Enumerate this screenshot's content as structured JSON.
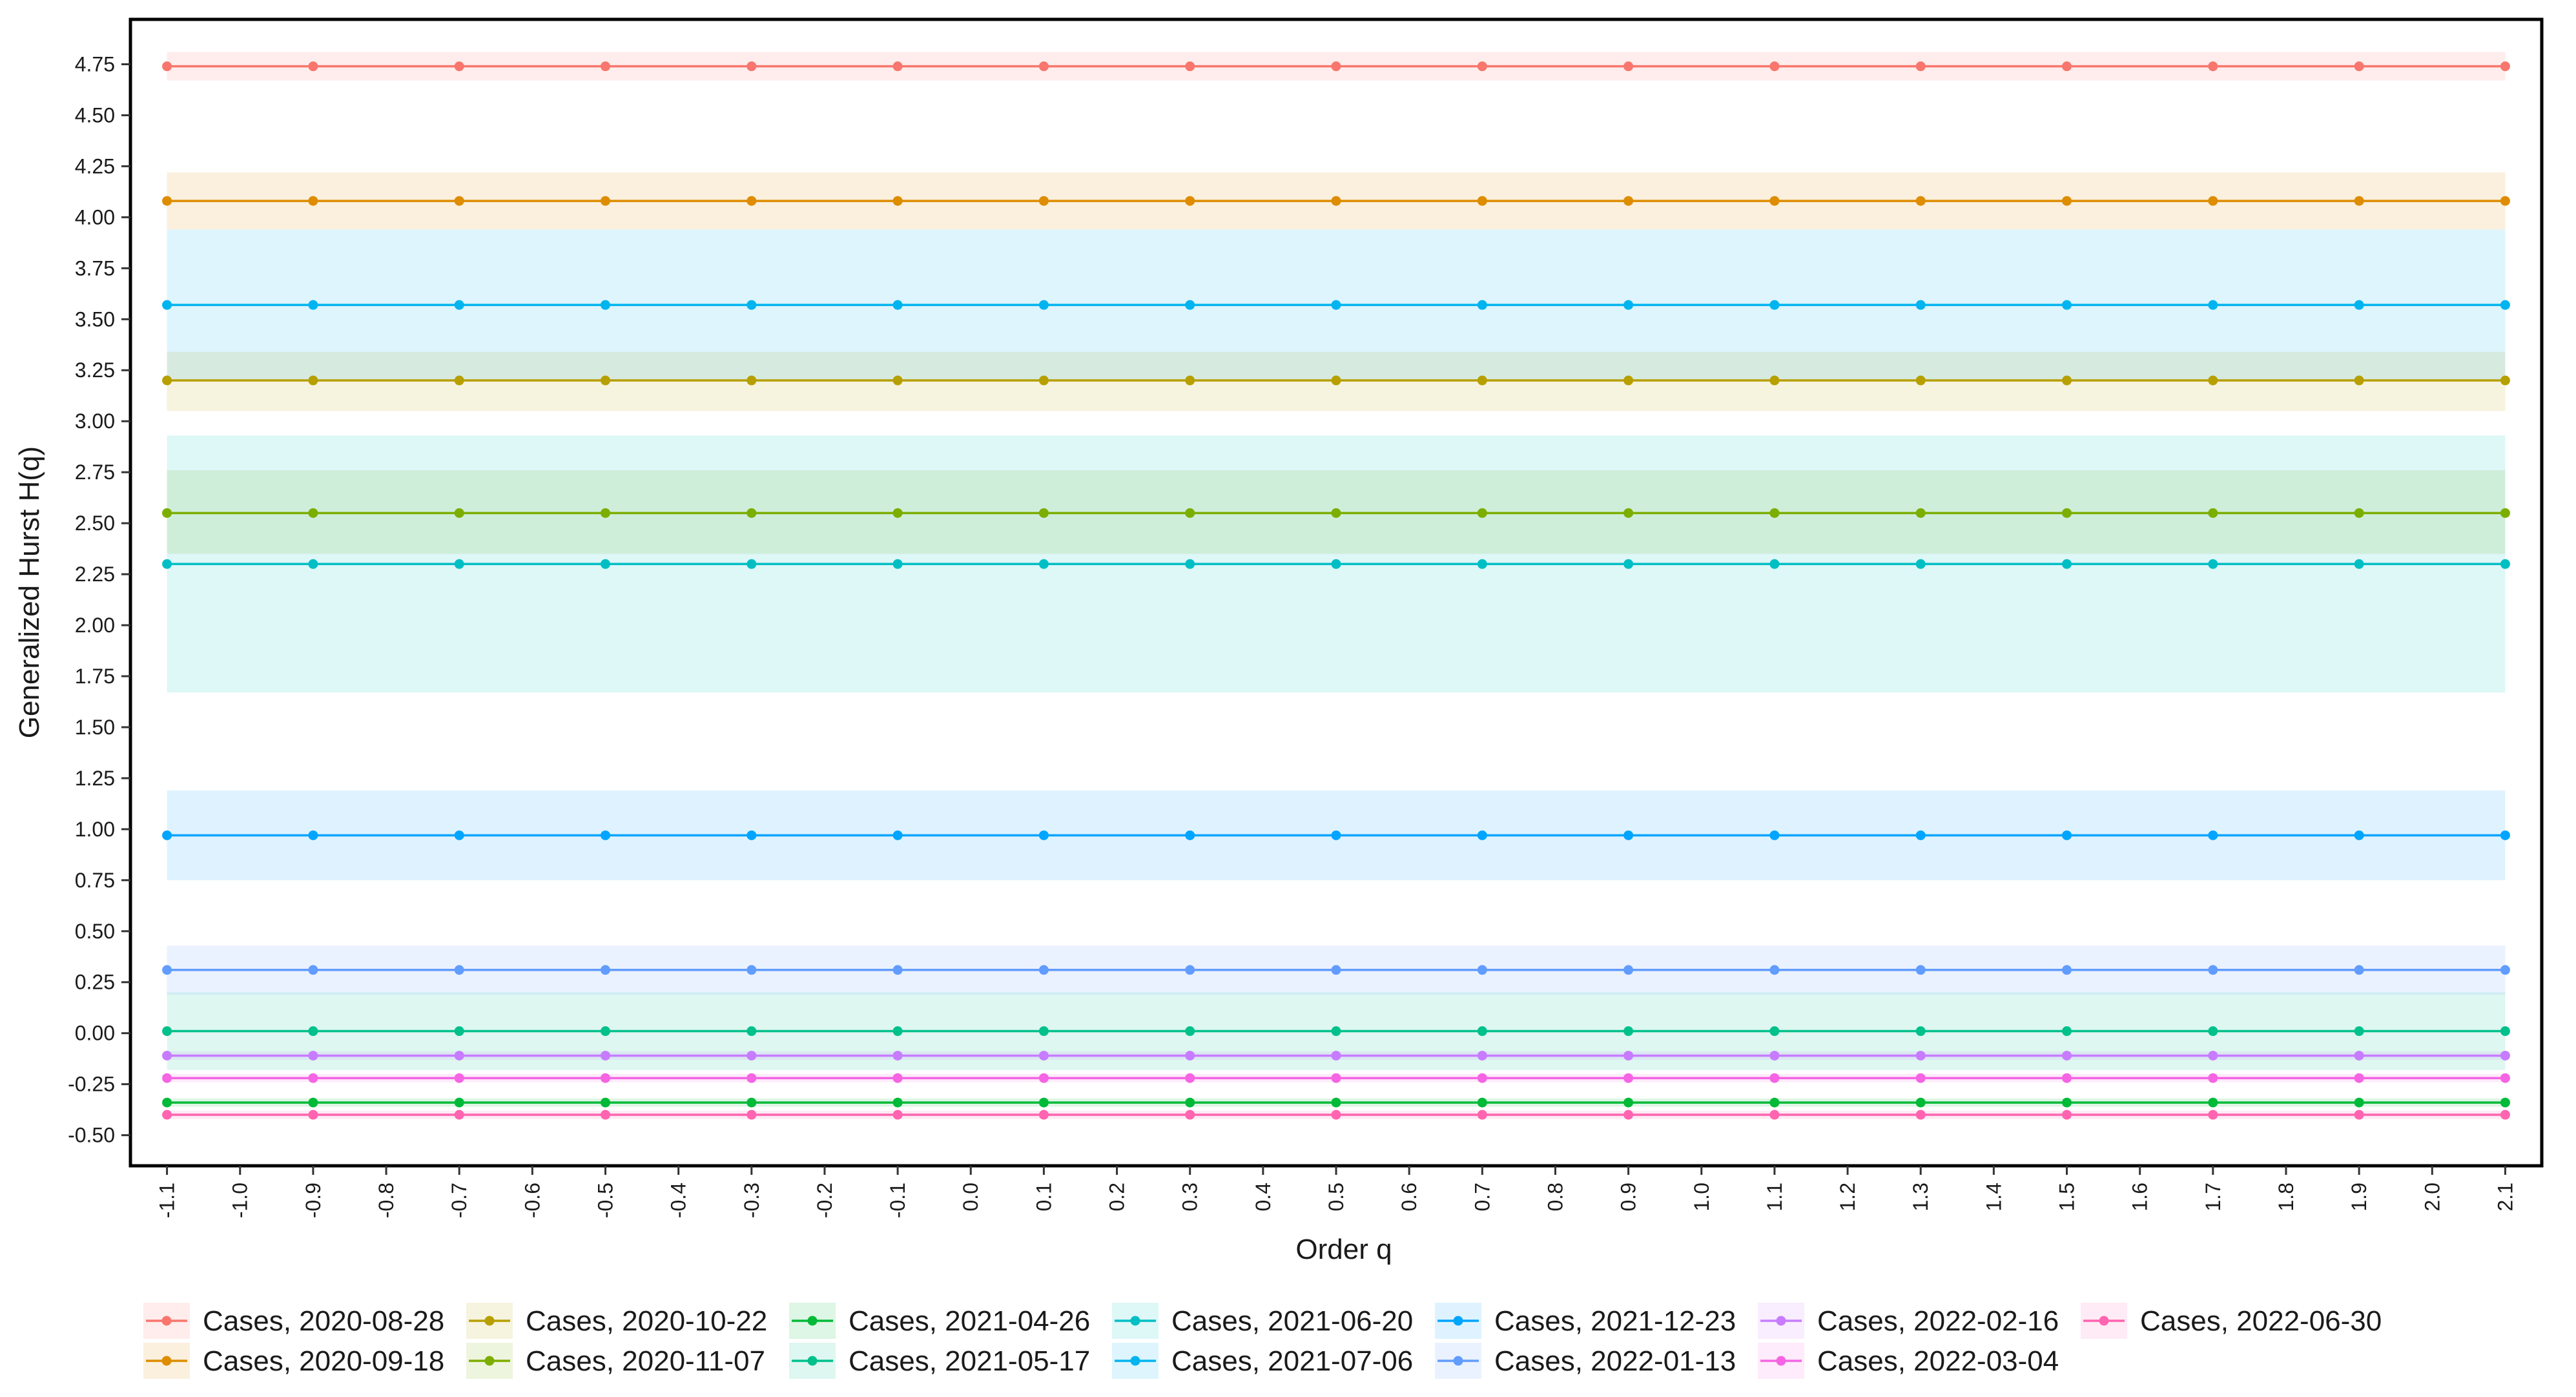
{
  "chart_data": {
    "type": "line",
    "xlabel": "Order q",
    "ylabel": "Generalized Hurst H(q)",
    "xlim": [
      -1.15,
      2.15
    ],
    "ylim": [
      -0.65,
      4.97
    ],
    "x_ticks": [
      -1.1,
      -1.0,
      -0.9,
      -0.8,
      -0.7,
      -0.6,
      -0.5,
      -0.4,
      -0.3,
      -0.2,
      -0.1,
      0.0,
      0.1,
      0.2,
      0.3,
      0.4,
      0.5,
      0.6,
      0.7,
      0.8,
      0.9,
      1.0,
      1.1,
      1.2,
      1.3,
      1.4,
      1.5,
      1.6,
      1.7,
      1.8,
      1.9,
      2.0,
      2.1
    ],
    "x_tick_labels": [
      "-1.1",
      "-1.0",
      "-0.9",
      "-0.8",
      "-0.7",
      "-0.6",
      "-0.5",
      "-0.4",
      "-0.3",
      "-0.2",
      "-0.1",
      "0.0",
      "0.1",
      "0.2",
      "0.3",
      "0.4",
      "0.5",
      "0.6",
      "0.7",
      "0.8",
      "0.9",
      "1.0",
      "1.1",
      "1.2",
      "1.3",
      "1.4",
      "1.5",
      "1.6",
      "1.7",
      "1.8",
      "1.9",
      "2.0",
      "2.1"
    ],
    "y_ticks": [
      -0.5,
      -0.25,
      0.0,
      0.25,
      0.5,
      0.75,
      1.0,
      1.25,
      1.5,
      1.75,
      2.0,
      2.25,
      2.5,
      2.75,
      3.0,
      3.25,
      3.5,
      3.75,
      4.0,
      4.25,
      4.5,
      4.75
    ],
    "y_tick_labels": [
      "-0.50",
      "-0.25",
      "0.00",
      "0.25",
      "0.50",
      "0.75",
      "1.00",
      "1.25",
      "1.50",
      "1.75",
      "2.00",
      "2.25",
      "2.50",
      "2.75",
      "3.00",
      "3.25",
      "3.50",
      "3.75",
      "4.00",
      "4.25",
      "4.50",
      "4.75"
    ],
    "x": [
      -1.1,
      -0.9,
      -0.7,
      -0.5,
      -0.3,
      -0.1,
      0.1,
      0.3,
      0.5,
      0.7,
      0.9,
      1.1,
      1.3,
      1.5,
      1.7,
      1.9,
      2.1
    ],
    "grid": false,
    "legend_position": "bottom",
    "series": [
      {
        "name": "Cases, 2020-08-28",
        "color": "#F8766D",
        "value": 4.74,
        "band": [
          4.67,
          4.81
        ]
      },
      {
        "name": "Cases, 2020-09-18",
        "color": "#DE8C00",
        "value": 4.08,
        "band": [
          3.94,
          4.22
        ]
      },
      {
        "name": "Cases, 2020-10-22",
        "color": "#B79F00",
        "value": 3.2,
        "band": [
          3.05,
          3.34
        ]
      },
      {
        "name": "Cases, 2020-11-07",
        "color": "#7CAE00",
        "value": 2.55,
        "band": [
          2.35,
          2.76
        ]
      },
      {
        "name": "Cases, 2021-04-26",
        "color": "#00BA38",
        "value": -0.34,
        "band": [
          -0.36,
          -0.32
        ]
      },
      {
        "name": "Cases, 2021-05-17",
        "color": "#00C08B",
        "value": 0.01,
        "band": [
          -0.18,
          0.2
        ]
      },
      {
        "name": "Cases, 2021-06-20",
        "color": "#00BFC4",
        "value": 2.3,
        "band": [
          1.67,
          2.93
        ]
      },
      {
        "name": "Cases, 2021-07-06",
        "color": "#00B4F0",
        "value": 3.57,
        "band": [
          3.2,
          3.94
        ]
      },
      {
        "name": "Cases, 2021-12-23",
        "color": "#00A5FF",
        "value": 0.97,
        "band": [
          0.75,
          1.19
        ]
      },
      {
        "name": "Cases, 2022-01-13",
        "color": "#619CFF",
        "value": 0.31,
        "band": [
          0.19,
          0.43
        ]
      },
      {
        "name": "Cases, 2022-02-16",
        "color": "#C77CFF",
        "value": -0.11,
        "band": [
          -0.13,
          -0.09
        ]
      },
      {
        "name": "Cases, 2022-03-04",
        "color": "#F564E3",
        "value": -0.22,
        "band": [
          -0.24,
          -0.2
        ]
      },
      {
        "name": "Cases, 2022-06-30",
        "color": "#FF64B0",
        "value": -0.4,
        "band": [
          -0.42,
          -0.38
        ]
      }
    ]
  }
}
